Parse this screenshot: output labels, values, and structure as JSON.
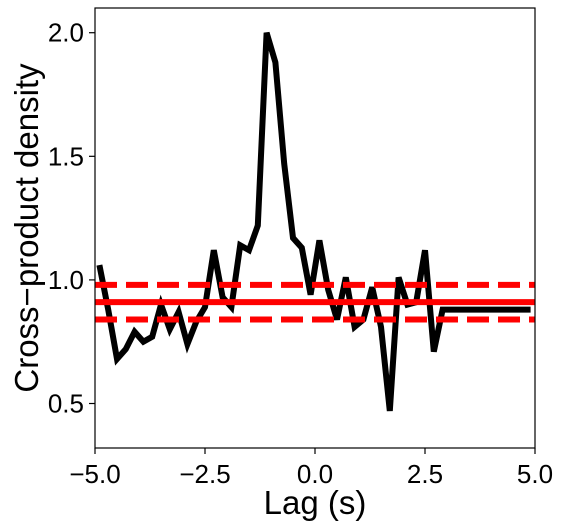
{
  "chart_data": {
    "type": "line",
    "title": "",
    "xlabel": "Lag (s)",
    "ylabel": "Cross−product density",
    "xlim": [
      -5.0,
      5.0
    ],
    "ylim": [
      0.32,
      2.1
    ],
    "xticks": [
      -5.0,
      -2.5,
      0.0,
      2.5,
      5.0
    ],
    "xtick_labels": [
      "−5.0",
      "−2.5",
      "0.0",
      "2.5",
      "5.0"
    ],
    "yticks": [
      0.5,
      1.0,
      1.5,
      2.0
    ],
    "ytick_labels": [
      "0.5",
      "1.0",
      "1.5",
      "2.0"
    ],
    "grid": false,
    "series": [
      {
        "color": "#000000",
        "x": [
          -4.9,
          -4.7,
          -4.5,
          -4.3,
          -4.1,
          -3.9,
          -3.7,
          -3.5,
          -3.3,
          -3.1,
          -2.9,
          -2.7,
          -2.5,
          -2.3,
          -2.1,
          -1.9,
          -1.7,
          -1.5,
          -1.3,
          -1.1,
          -0.9,
          -0.7,
          -0.5,
          -0.3,
          -0.1,
          0.1,
          0.3,
          0.5,
          0.7,
          0.9,
          1.1,
          1.3,
          1.5,
          1.7,
          1.9,
          2.1,
          2.3,
          2.5,
          2.7,
          2.9,
          3.1,
          3.3,
          3.5,
          3.7,
          3.9,
          4.1,
          4.3,
          4.5,
          4.7,
          4.9
        ],
        "y": [
          1.06,
          0.88,
          0.68,
          0.72,
          0.79,
          0.75,
          0.77,
          0.9,
          0.8,
          0.87,
          0.74,
          0.83,
          0.89,
          1.12,
          0.93,
          0.89,
          1.14,
          1.12,
          1.22,
          2.0,
          1.88,
          1.47,
          1.17,
          1.13,
          0.94,
          1.16,
          0.96,
          0.84,
          1.01,
          0.81,
          0.84,
          0.97,
          0.81,
          0.47,
          1.01,
          0.9,
          0.91,
          1.12,
          0.71,
          0.88,
          0.88,
          0.88,
          0.88,
          0.88,
          0.88,
          0.88,
          0.88,
          0.88,
          0.88,
          0.88
        ]
      }
    ],
    "reference_lines": [
      {
        "y": 0.91,
        "style": "solid",
        "color": "#ff0000"
      },
      {
        "y": 0.98,
        "style": "dashed",
        "color": "#ff0000"
      },
      {
        "y": 0.84,
        "style": "dashed",
        "color": "#ff0000"
      }
    ]
  }
}
